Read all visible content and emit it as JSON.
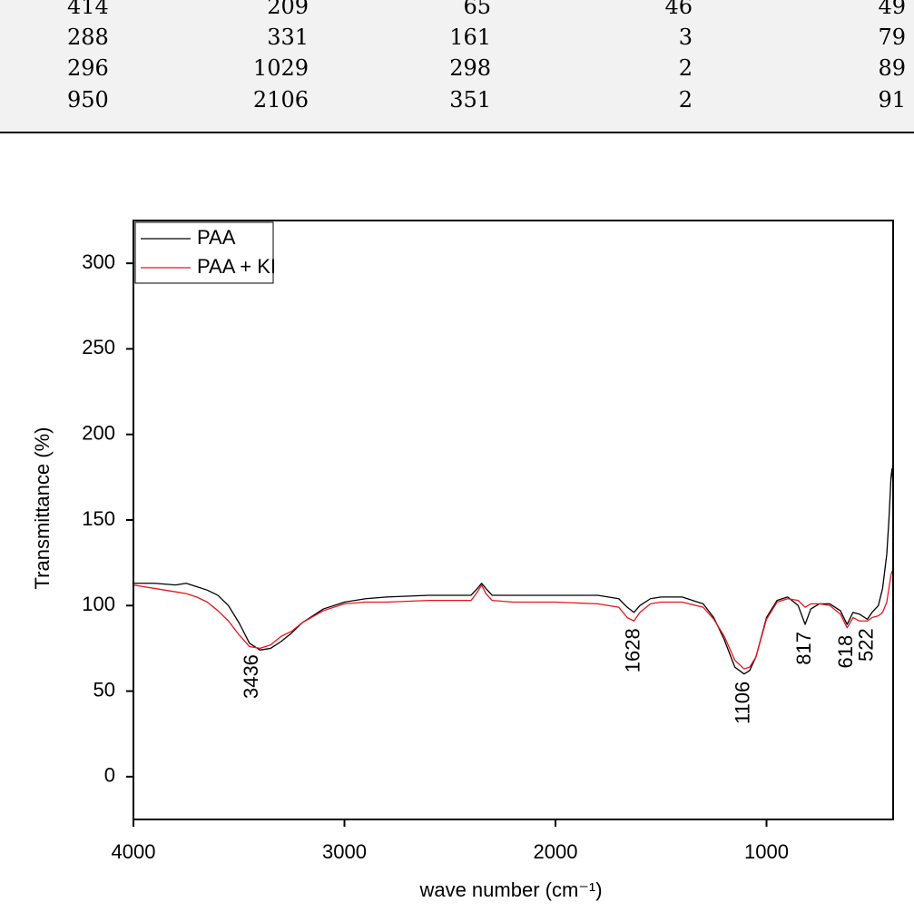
{
  "table": {
    "rows": [
      [
        414,
        209,
        65,
        46,
        49
      ],
      [
        288,
        331,
        161,
        3,
        79
      ],
      [
        296,
        1029,
        298,
        2,
        89
      ],
      [
        950,
        2106,
        351,
        2,
        91
      ]
    ]
  },
  "chart_data": {
    "type": "line",
    "xlabel": "wave number (cm⁻¹)",
    "ylabel": "Transmittance (%)",
    "xlim": [
      4000,
      400
    ],
    "xticks": [
      4000,
      3000,
      2000,
      1000
    ],
    "ylim": [
      -25,
      325
    ],
    "yticks": [
      0,
      50,
      100,
      150,
      200,
      250,
      300
    ],
    "legend": "upper left",
    "x": [
      4000,
      3900,
      3800,
      3750,
      3700,
      3650,
      3600,
      3550,
      3500,
      3450,
      3400,
      3350,
      3300,
      3250,
      3200,
      3100,
      3000,
      2900,
      2800,
      2600,
      2400,
      2370,
      2350,
      2330,
      2300,
      2200,
      2000,
      1800,
      1700,
      1660,
      1628,
      1600,
      1550,
      1500,
      1400,
      1300,
      1250,
      1200,
      1150,
      1106,
      1080,
      1050,
      1000,
      950,
      900,
      850,
      817,
      790,
      750,
      700,
      650,
      618,
      590,
      560,
      522,
      500,
      470,
      450,
      430,
      420,
      410,
      405,
      400
    ],
    "series": [
      {
        "name": "PAA",
        "color": "#000000",
        "values": [
          113,
          113,
          112,
          113,
          111,
          109,
          106,
          100,
          90,
          78,
          74,
          75,
          79,
          84,
          90,
          98,
          102,
          104,
          105,
          106,
          106,
          110,
          113,
          110,
          106,
          106,
          106,
          106,
          104,
          99,
          96,
          100,
          104,
          105,
          105,
          101,
          93,
          80,
          64,
          60,
          62,
          70,
          93,
          103,
          105,
          100,
          89,
          98,
          101,
          101,
          97,
          89,
          96,
          95,
          92,
          96,
          100,
          110,
          130,
          150,
          175,
          180,
          170
        ]
      },
      {
        "name": "PAA + KI",
        "color": "#e8141c",
        "values": [
          112,
          110,
          108,
          107,
          105,
          102,
          97,
          91,
          83,
          76,
          75,
          77,
          82,
          85,
          90,
          97,
          101,
          102,
          102,
          103,
          103,
          108,
          112,
          107,
          103,
          102,
          102,
          101,
          99,
          93,
          91,
          96,
          101,
          102,
          102,
          99,
          92,
          82,
          68,
          63,
          64,
          70,
          92,
          102,
          104,
          103,
          99,
          101,
          101,
          100,
          95,
          87,
          93,
          91,
          91,
          93,
          94,
          96,
          102,
          110,
          118,
          120,
          118
        ]
      }
    ],
    "annotations": [
      3436,
      1628,
      1106,
      817,
      618,
      522
    ]
  }
}
